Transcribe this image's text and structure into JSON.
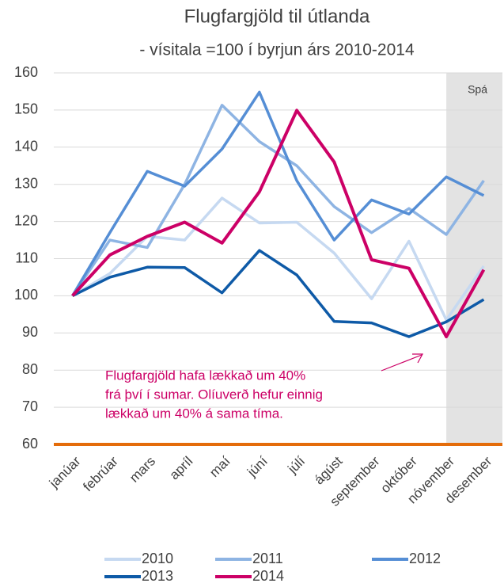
{
  "chart_data": {
    "type": "line",
    "title": "Flugfargjöld til útlanda",
    "subtitle": "- vísitala =100 í byrjun árs 2010-2014",
    "categories": [
      "janúar",
      "febrúar",
      "mars",
      "apríl",
      "maí",
      "júní",
      "júlí",
      "ágúst",
      "september",
      "október",
      "nóvember",
      "desember"
    ],
    "series": [
      {
        "name": "2010",
        "color": "#c6d9f1",
        "values": [
          100,
          106,
          116,
          115,
          126.3,
          119.6,
          119.8,
          111.5,
          99.2,
          114.7,
          93.5,
          108
        ]
      },
      {
        "name": "2011",
        "color": "#8eb4e3",
        "values": [
          100,
          115,
          113,
          130,
          151.3,
          141.5,
          135,
          124,
          117,
          123.5,
          116.5,
          131
        ]
      },
      {
        "name": "2012",
        "color": "#558ed5",
        "values": [
          100,
          117,
          133.5,
          129.5,
          139.5,
          154.8,
          131,
          115,
          125.8,
          122,
          132,
          127
        ]
      },
      {
        "name": "2013",
        "color": "#0e5aa7",
        "values": [
          100,
          105,
          107.7,
          107.6,
          100.8,
          112.2,
          105.6,
          93.1,
          92.7,
          89,
          93,
          99
        ]
      },
      {
        "name": "2014",
        "color": "#cc0066",
        "values": [
          100,
          111,
          116,
          119.8,
          114.2,
          128,
          149.9,
          136,
          109.7,
          107.4,
          89,
          107
        ]
      }
    ],
    "ylim": [
      60,
      160
    ],
    "yticks": [
      60,
      70,
      80,
      90,
      100,
      110,
      120,
      130,
      140,
      150,
      160
    ],
    "grid": true,
    "forecast_from": "nóvember",
    "forecast_label": "Spá",
    "annotation": [
      "Flugfargjöld hafa lækkað um 40%",
      "frá því í sumar. Olíuverð hefur einnig",
      "lækkað um 40% á sama tíma."
    ],
    "legend": "bottom"
  }
}
